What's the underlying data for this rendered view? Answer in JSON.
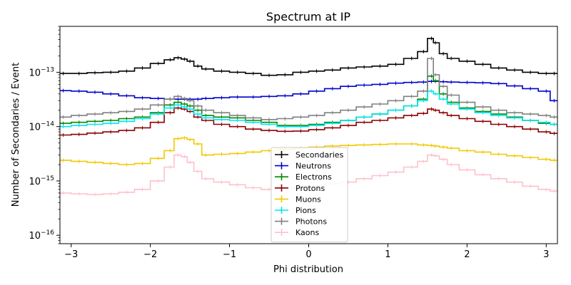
{
  "chart_data": {
    "type": "line",
    "title": "Spectrum at IP",
    "xlabel": "Phi distribution",
    "ylabel": "Number of Secondaries / Event",
    "xlim": [
      -3.14159,
      3.14159
    ],
    "ylim": [
      7e-17,
      7e-13
    ],
    "yscale": "log",
    "grid": false,
    "legend_position": "lower-center",
    "x_ticks": [
      -3,
      -2,
      -1,
      0,
      1,
      2,
      3
    ],
    "x_tick_labels": [
      "−3",
      "−2",
      "−1",
      "0",
      "1",
      "2",
      "3"
    ],
    "y_ticks": [
      1e-16,
      1e-15,
      1e-14,
      1e-13
    ],
    "y_tick_labels": [
      {
        "base": "10",
        "exp": "−16"
      },
      {
        "base": "10",
        "exp": "−15"
      },
      {
        "base": "10",
        "exp": "−14"
      },
      {
        "base": "10",
        "exp": "−13"
      }
    ],
    "x": [
      -3.1,
      -2.9,
      -2.7,
      -2.5,
      -2.3,
      -2.1,
      -1.9,
      -1.75,
      -1.65,
      -1.57,
      -1.5,
      -1.4,
      -1.3,
      -1.1,
      -0.9,
      -0.7,
      -0.5,
      -0.3,
      -0.1,
      0.1,
      0.3,
      0.5,
      0.7,
      0.9,
      1.1,
      1.3,
      1.45,
      1.55,
      1.6,
      1.7,
      1.8,
      2.0,
      2.2,
      2.4,
      2.6,
      2.8,
      3.0,
      3.1
    ],
    "series": [
      {
        "name": "Secondaries",
        "color": "#000000",
        "values": [
          9.5e-14,
          9.5e-14,
          9.8e-14,
          1e-13,
          1.05e-13,
          1.2e-13,
          1.45e-13,
          1.7e-13,
          1.85e-13,
          1.75e-13,
          1.6e-13,
          1.3e-13,
          1.15e-13,
          1.05e-13,
          1e-13,
          9.5e-14,
          8.8e-14,
          9e-14,
          1e-13,
          1.05e-13,
          1.1e-13,
          1.2e-13,
          1.25e-13,
          1.3e-13,
          1.4e-13,
          1.8e-13,
          2.4e-13,
          4.2e-13,
          3.5e-13,
          2.2e-13,
          1.8e-13,
          1.6e-13,
          1.4e-13,
          1.2e-13,
          1.1e-13,
          1e-13,
          9.5e-14,
          9.5e-14
        ]
      },
      {
        "name": "Neutrons",
        "color": "#0000cc",
        "values": [
          4.6e-14,
          4.5e-14,
          4.3e-14,
          4e-14,
          3.7e-14,
          3.4e-14,
          3.3e-14,
          3.2e-14,
          3.2e-14,
          3.2e-14,
          3.2e-14,
          3.2e-14,
          3.3e-14,
          3.4e-14,
          3.5e-14,
          3.5e-14,
          3.6e-14,
          3.7e-14,
          4e-14,
          4.5e-14,
          5e-14,
          5.5e-14,
          5.8e-14,
          6e-14,
          6.3e-14,
          6.5e-14,
          6.6e-14,
          6.8e-14,
          6.8e-14,
          6.7e-14,
          6.6e-14,
          6.5e-14,
          6.4e-14,
          6.2e-14,
          5.6e-14,
          5e-14,
          4.5e-14,
          3e-14
        ]
      },
      {
        "name": "Electrons",
        "color": "#008800",
        "values": [
          1.15e-14,
          1.2e-14,
          1.25e-14,
          1.3e-14,
          1.4e-14,
          1.5e-14,
          1.8e-14,
          2.5e-14,
          2.8e-14,
          2.6e-14,
          2.4e-14,
          2e-14,
          1.6e-14,
          1.5e-14,
          1.45e-14,
          1.3e-14,
          1.2e-14,
          1.05e-14,
          1.05e-14,
          1.1e-14,
          1.2e-14,
          1.3e-14,
          1.5e-14,
          1.7e-14,
          2e-14,
          2.4e-14,
          3.2e-14,
          8.5e-14,
          7e-14,
          4e-14,
          2.8e-14,
          2.2e-14,
          1.9e-14,
          1.7e-14,
          1.5e-14,
          1.3e-14,
          1.15e-14,
          1.1e-14
        ]
      },
      {
        "name": "Protons",
        "color": "#8b0000",
        "values": [
          7e-15,
          7.2e-15,
          7.6e-15,
          8e-15,
          8.5e-15,
          9.5e-15,
          1.2e-14,
          1.8e-14,
          2.2e-14,
          2.1e-14,
          1.9e-14,
          1.5e-14,
          1.3e-14,
          1.1e-14,
          1e-14,
          9e-15,
          8.5e-15,
          8.2e-15,
          8.3e-15,
          8.8e-15,
          9.5e-15,
          1.05e-14,
          1.2e-14,
          1.3e-14,
          1.45e-14,
          1.6e-14,
          1.75e-14,
          2.1e-14,
          2e-14,
          1.8e-14,
          1.6e-14,
          1.4e-14,
          1.25e-14,
          1.1e-14,
          1e-14,
          9e-15,
          8e-15,
          7.5e-15
        ]
      },
      {
        "name": "Muons",
        "color": "#f2c800",
        "values": [
          2.4e-15,
          2.3e-15,
          2.2e-15,
          2.1e-15,
          2e-15,
          2.1e-15,
          2.6e-15,
          3.6e-15,
          6e-15,
          6.2e-15,
          5.8e-15,
          4.8e-15,
          3e-15,
          3.1e-15,
          3.2e-15,
          3.4e-15,
          3.6e-15,
          3.8e-15,
          4e-15,
          4.2e-15,
          4.4e-15,
          4.5e-15,
          4.6e-15,
          4.7e-15,
          4.8e-15,
          4.8e-15,
          4.6e-15,
          4.5e-15,
          4.4e-15,
          4.2e-15,
          4e-15,
          3.6e-15,
          3.4e-15,
          3.1e-15,
          2.9e-15,
          2.7e-15,
          2.5e-15,
          2.4e-15
        ]
      },
      {
        "name": "Pions",
        "color": "#00e5ee",
        "values": [
          1e-14,
          1.05e-14,
          1.1e-14,
          1.15e-14,
          1.25e-14,
          1.4e-14,
          1.7e-14,
          2.2e-14,
          2.5e-14,
          2.3e-14,
          2.1e-14,
          1.7e-14,
          1.45e-14,
          1.35e-14,
          1.3e-14,
          1.2e-14,
          1.1e-14,
          1e-14,
          1e-14,
          1.05e-14,
          1.15e-14,
          1.3e-14,
          1.5e-14,
          1.7e-14,
          2e-14,
          2.4e-14,
          3e-14,
          4.5e-14,
          4e-14,
          3.2e-14,
          2.6e-14,
          2.1e-14,
          1.8e-14,
          1.6e-14,
          1.45e-14,
          1.3e-14,
          1.2e-14,
          1.1e-14
        ]
      },
      {
        "name": "Photons",
        "color": "#808080",
        "values": [
          1.5e-14,
          1.6e-14,
          1.7e-14,
          1.8e-14,
          1.9e-14,
          2.1e-14,
          2.5e-14,
          3.2e-14,
          3.6e-14,
          3.3e-14,
          3e-14,
          2.4e-14,
          2e-14,
          1.8e-14,
          1.6e-14,
          1.45e-14,
          1.35e-14,
          1.4e-14,
          1.5e-14,
          1.6e-14,
          1.8e-14,
          2e-14,
          2.3e-14,
          2.6e-14,
          3e-14,
          3.6e-14,
          4.5e-14,
          1.8e-13,
          9e-14,
          5.5e-14,
          3.8e-14,
          2.8e-14,
          2.3e-14,
          2e-14,
          1.8e-14,
          1.7e-14,
          1.6e-14,
          1.5e-14
        ]
      },
      {
        "name": "Kaons",
        "color": "#ffc0cb",
        "values": [
          6e-16,
          5.8e-16,
          5.6e-16,
          5.8e-16,
          6.2e-16,
          7e-16,
          1e-15,
          1.8e-15,
          3e-15,
          2.8e-15,
          2.2e-15,
          1.5e-15,
          1.1e-15,
          9.5e-16,
          8.5e-16,
          7.5e-16,
          7e-16,
          7.2e-16,
          7.5e-16,
          8e-16,
          8.8e-16,
          9.5e-16,
          1.1e-15,
          1.25e-15,
          1.45e-15,
          1.8e-15,
          2.3e-15,
          3e-15,
          2.9e-15,
          2.5e-15,
          2e-15,
          1.6e-15,
          1.3e-15,
          1.1e-15,
          9.5e-16,
          8e-16,
          7e-16,
          6.5e-16
        ]
      }
    ]
  }
}
